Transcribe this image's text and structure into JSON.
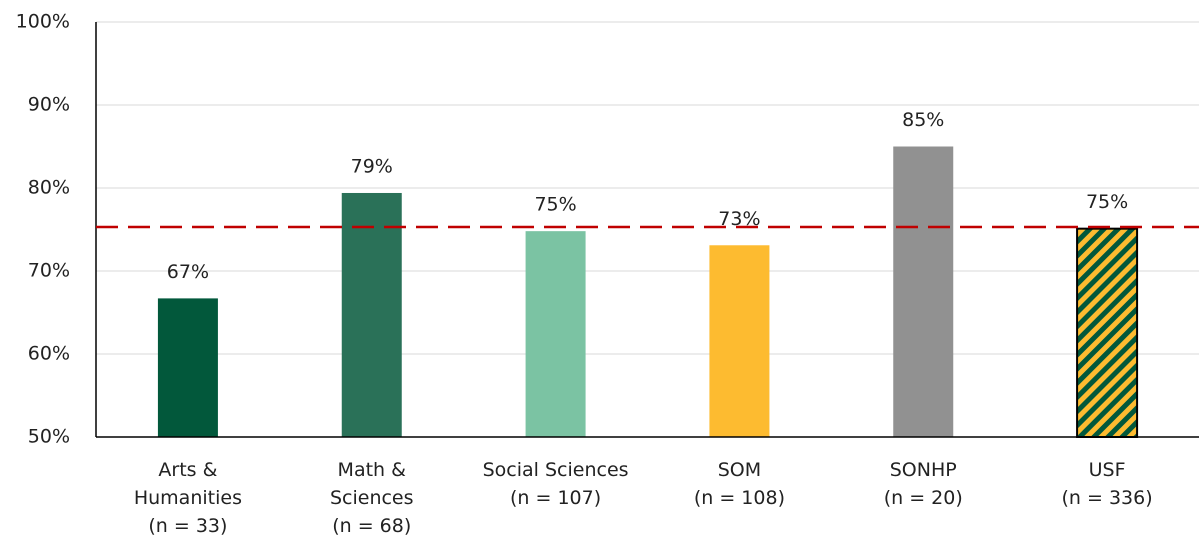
{
  "chart_data": {
    "type": "bar",
    "categories": [
      "Arts &\nHumanities\n(n = 33)",
      "Math &\nSciences\n(n = 68)",
      "Social Sciences\n(n = 107)",
      "SOM\n(n = 108)",
      "SONHP\n(n = 20)",
      "USF\n(n = 336)"
    ],
    "values": [
      66.7,
      79.4,
      74.8,
      73.1,
      85,
      75.1
    ],
    "value_labels": [
      "67%",
      "79%",
      "75%",
      "73%",
      "85%",
      "75%"
    ],
    "colors": [
      "#02583b",
      "#2a7158",
      "#7bc3a3",
      "#fdbb30",
      "#919191",
      "#fdbb30"
    ],
    "hatched": [
      false,
      false,
      false,
      false,
      false,
      true
    ],
    "hatch_color": "#02583b",
    "reference_line": {
      "value": 75.3,
      "color": "#c00000"
    },
    "ylim": [
      50,
      100
    ],
    "yticks": [
      {
        "value": 50,
        "label": "50%"
      },
      {
        "value": 60,
        "label": "60%"
      },
      {
        "value": 70,
        "label": "70%"
      },
      {
        "value": 80,
        "label": "80%"
      },
      {
        "value": 90,
        "label": "90%"
      },
      {
        "value": 100,
        "label": "100%"
      }
    ],
    "grid": true
  }
}
